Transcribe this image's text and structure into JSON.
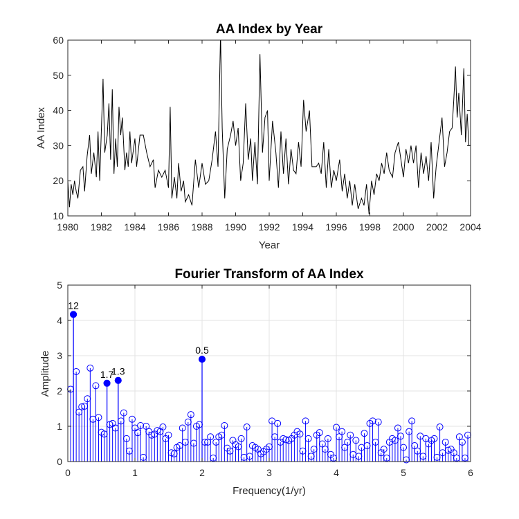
{
  "chart_data": [
    {
      "type": "line",
      "title": "AA Index by Year",
      "xlabel": "Year",
      "ylabel": "AA Index",
      "xlim": [
        1980,
        2004
      ],
      "ylim": [
        10,
        60
      ],
      "xticks": [
        "1980",
        "1982",
        "1984",
        "1986",
        "1988",
        "1990",
        "1992",
        "1994",
        "1996",
        "1998",
        "2000",
        "2002",
        "2004"
      ],
      "yticks": [
        "10",
        "20",
        "30",
        "40",
        "50",
        "60"
      ],
      "grid": false,
      "line_color": "#000000",
      "anchors": [
        [
          1980.0,
          20
        ],
        [
          1980.1,
          12.5
        ],
        [
          1980.2,
          19
        ],
        [
          1980.3,
          16
        ],
        [
          1980.4,
          20
        ],
        [
          1980.5,
          17
        ],
        [
          1980.6,
          15
        ],
        [
          1980.75,
          23
        ],
        [
          1980.9,
          24
        ],
        [
          1981.0,
          17
        ],
        [
          1981.15,
          27
        ],
        [
          1981.3,
          33
        ],
        [
          1981.4,
          22
        ],
        [
          1981.55,
          28
        ],
        [
          1981.7,
          21
        ],
        [
          1981.8,
          34
        ],
        [
          1981.9,
          20
        ],
        [
          1982.1,
          49
        ],
        [
          1982.2,
          28
        ],
        [
          1982.35,
          33
        ],
        [
          1982.45,
          42
        ],
        [
          1982.55,
          26
        ],
        [
          1982.65,
          46
        ],
        [
          1982.75,
          22
        ],
        [
          1982.85,
          32
        ],
        [
          1982.95,
          24
        ],
        [
          1983.05,
          41
        ],
        [
          1983.15,
          33
        ],
        [
          1983.25,
          38
        ],
        [
          1983.4,
          23
        ],
        [
          1983.5,
          28
        ],
        [
          1983.6,
          24
        ],
        [
          1983.7,
          34
        ],
        [
          1983.8,
          25
        ],
        [
          1984.0,
          32
        ],
        [
          1984.1,
          24
        ],
        [
          1984.3,
          33
        ],
        [
          1984.5,
          33
        ],
        [
          1984.7,
          28
        ],
        [
          1984.9,
          24
        ],
        [
          1985.1,
          26
        ],
        [
          1985.2,
          18
        ],
        [
          1985.4,
          23
        ],
        [
          1985.6,
          21
        ],
        [
          1985.8,
          23
        ],
        [
          1986.0,
          18
        ],
        [
          1986.1,
          41
        ],
        [
          1986.2,
          15
        ],
        [
          1986.35,
          21
        ],
        [
          1986.5,
          15
        ],
        [
          1986.6,
          25
        ],
        [
          1986.75,
          17
        ],
        [
          1986.9,
          20
        ],
        [
          1987.0,
          14
        ],
        [
          1987.2,
          16
        ],
        [
          1987.4,
          13
        ],
        [
          1987.6,
          26
        ],
        [
          1987.8,
          18
        ],
        [
          1988.0,
          25
        ],
        [
          1988.2,
          19
        ],
        [
          1988.4,
          20
        ],
        [
          1988.6,
          26
        ],
        [
          1988.8,
          34
        ],
        [
          1988.95,
          24
        ],
        [
          1989.1,
          62
        ],
        [
          1989.2,
          35
        ],
        [
          1989.35,
          15
        ],
        [
          1989.5,
          29
        ],
        [
          1989.7,
          33
        ],
        [
          1989.85,
          37
        ],
        [
          1990.0,
          30
        ],
        [
          1990.15,
          35
        ],
        [
          1990.3,
          20
        ],
        [
          1990.45,
          25
        ],
        [
          1990.6,
          42
        ],
        [
          1990.75,
          26
        ],
        [
          1990.9,
          32
        ],
        [
          1991.0,
          20
        ],
        [
          1991.15,
          31
        ],
        [
          1991.3,
          19
        ],
        [
          1991.45,
          56
        ],
        [
          1991.6,
          28
        ],
        [
          1991.75,
          38
        ],
        [
          1991.9,
          40
        ],
        [
          1992.0,
          20
        ],
        [
          1992.2,
          37
        ],
        [
          1992.4,
          28
        ],
        [
          1992.55,
          18
        ],
        [
          1992.7,
          34
        ],
        [
          1992.85,
          22
        ],
        [
          1993.0,
          32
        ],
        [
          1993.15,
          19
        ],
        [
          1993.3,
          29
        ],
        [
          1993.45,
          23
        ],
        [
          1993.6,
          22
        ],
        [
          1993.75,
          31
        ],
        [
          1993.9,
          24
        ],
        [
          1994.05,
          43
        ],
        [
          1994.2,
          34
        ],
        [
          1994.4,
          40
        ],
        [
          1994.55,
          24
        ],
        [
          1994.8,
          24
        ],
        [
          1994.95,
          25
        ],
        [
          1995.1,
          22
        ],
        [
          1995.25,
          31
        ],
        [
          1995.4,
          18
        ],
        [
          1995.55,
          29
        ],
        [
          1995.7,
          18
        ],
        [
          1995.85,
          23
        ],
        [
          1996.0,
          20
        ],
        [
          1996.2,
          26
        ],
        [
          1996.35,
          17
        ],
        [
          1996.5,
          22
        ],
        [
          1996.65,
          15
        ],
        [
          1996.8,
          20
        ],
        [
          1996.95,
          13
        ],
        [
          1997.1,
          19
        ],
        [
          1997.3,
          12
        ],
        [
          1997.5,
          15
        ],
        [
          1997.65,
          13
        ],
        [
          1997.8,
          19
        ],
        [
          1997.95,
          10.5
        ],
        [
          1998.1,
          20
        ],
        [
          1998.25,
          16
        ],
        [
          1998.4,
          22
        ],
        [
          1998.55,
          20
        ],
        [
          1998.7,
          25
        ],
        [
          1998.85,
          22
        ],
        [
          1999.0,
          28
        ],
        [
          1999.15,
          23
        ],
        [
          1999.35,
          21
        ],
        [
          1999.5,
          28
        ],
        [
          1999.7,
          31
        ],
        [
          1999.85,
          26
        ],
        [
          2000.0,
          21
        ],
        [
          2000.15,
          29
        ],
        [
          2000.3,
          25
        ],
        [
          2000.45,
          30
        ],
        [
          2000.6,
          25
        ],
        [
          2000.75,
          30
        ],
        [
          2000.9,
          18
        ],
        [
          2001.05,
          28
        ],
        [
          2001.2,
          22
        ],
        [
          2001.35,
          27
        ],
        [
          2001.5,
          20
        ],
        [
          2001.65,
          31
        ],
        [
          2001.8,
          15
        ],
        [
          2001.95,
          24
        ],
        [
          2002.1,
          30
        ],
        [
          2002.3,
          38
        ],
        [
          2002.45,
          24
        ],
        [
          2002.6,
          28
        ],
        [
          2002.75,
          34
        ],
        [
          2002.9,
          35
        ],
        [
          2003.0,
          43
        ],
        [
          2003.1,
          52.5
        ],
        [
          2003.2,
          38
        ],
        [
          2003.3,
          45
        ],
        [
          2003.45,
          33
        ],
        [
          2003.6,
          52
        ],
        [
          2003.7,
          31
        ],
        [
          2003.8,
          39
        ],
        [
          2003.9,
          30
        ],
        [
          2003.98,
          30
        ]
      ]
    },
    {
      "type": "stem",
      "title": "Fourier Transform of AA Index",
      "xlabel": "Frequency(1/yr)",
      "ylabel": "Amplitude",
      "xlim": [
        0,
        6
      ],
      "ylim": [
        0,
        5
      ],
      "xticks": [
        "0",
        "1",
        "2",
        "3",
        "4",
        "5",
        "6"
      ],
      "yticks": [
        "0",
        "1",
        "2",
        "3",
        "4",
        "5"
      ],
      "grid": true,
      "stem_color": "#0000FF",
      "freq_step": 0.04167,
      "amplitudes": [
        2.05,
        4.17,
        2.55,
        1.4,
        1.55,
        1.57,
        1.78,
        2.65,
        1.2,
        2.15,
        1.25,
        0.83,
        0.78,
        2.22,
        1.05,
        1.08,
        0.95,
        2.3,
        1.15,
        1.38,
        0.65,
        0.3,
        1.2,
        0.95,
        0.82,
        1.02,
        0.12,
        1.0,
        0.85,
        0.75,
        0.78,
        0.88,
        0.85,
        0.98,
        0.65,
        0.75,
        0.25,
        0.22,
        0.4,
        0.45,
        0.95,
        0.55,
        1.12,
        1.33,
        0.52,
        1.0,
        1.05,
        2.9,
        0.55,
        0.55,
        0.7,
        0.1,
        0.55,
        0.7,
        0.75,
        1.02,
        0.38,
        0.3,
        0.6,
        0.48,
        0.42,
        0.65,
        0.12,
        0.98,
        0.15,
        0.45,
        0.4,
        0.35,
        0.22,
        0.28,
        0.35,
        0.42,
        1.15,
        0.7,
        1.08,
        0.55,
        0.65,
        0.62,
        0.6,
        0.65,
        0.75,
        0.85,
        0.78,
        0.3,
        1.15,
        0.65,
        0.15,
        0.35,
        0.75,
        0.82,
        0.5,
        0.35,
        0.65,
        0.2,
        0.1,
        0.97,
        0.7,
        0.85,
        0.4,
        0.55,
        0.75,
        0.2,
        0.6,
        0.15,
        0.4,
        0.8,
        0.45,
        1.08,
        1.15,
        0.55,
        1.12,
        0.25,
        0.35,
        0.1,
        0.55,
        0.65,
        0.6,
        0.95,
        0.72,
        0.4,
        0.05,
        0.85,
        1.15,
        0.45,
        0.3,
        0.72,
        0.15,
        0.65,
        0.5,
        0.6,
        0.65,
        0.12,
        0.98,
        0.25,
        0.55,
        0.32,
        0.35,
        0.25,
        0.1,
        0.7,
        0.55,
        0.1,
        0.75,
        0.6,
        0.28,
        0.55
      ],
      "peaks": [
        {
          "label": "12",
          "freq": 0.0833,
          "amplitude": 4.17
        },
        {
          "label": "1.7",
          "freq": 0.5833,
          "amplitude": 2.22
        },
        {
          "label": "1.3",
          "freq": 0.75,
          "amplitude": 2.3
        },
        {
          "label": "0.5",
          "freq": 2.0,
          "amplitude": 2.9
        }
      ]
    }
  ]
}
